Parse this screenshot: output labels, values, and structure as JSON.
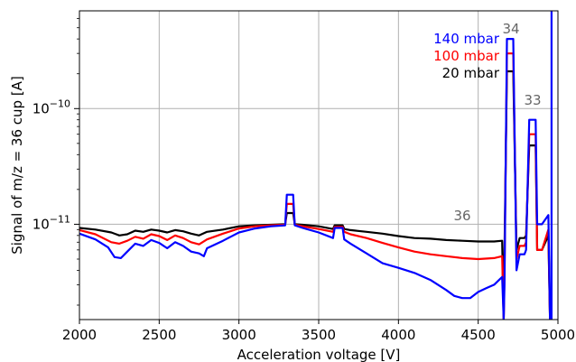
{
  "chart_data": {
    "type": "line",
    "xlabel": "Acceleration voltage [V]",
    "ylabel": "Signal of m/z = 36 cup [A]",
    "xlim": [
      2000,
      5000
    ],
    "ylim": [
      1.5e-12,
      7e-10
    ],
    "yscale": "log",
    "grid": true,
    "x_ticks": [
      2000,
      2500,
      3000,
      3500,
      4000,
      4500,
      5000
    ],
    "x_tick_labels": [
      "2000",
      "2500",
      "3000",
      "3500",
      "4000",
      "4500",
      "5000"
    ],
    "y_ticks": [
      1e-11,
      1e-10
    ],
    "y_tick_labels": [
      "10−11",
      "10−10"
    ],
    "legend_position": "top-right",
    "series": [
      {
        "name": "20 mbar",
        "color": "#000000",
        "points": [
          [
            2000,
            9.3e-12
          ],
          [
            2100,
            9e-12
          ],
          [
            2200,
            8.5e-12
          ],
          [
            2250,
            8e-12
          ],
          [
            2300,
            8.2e-12
          ],
          [
            2350,
            8.8e-12
          ],
          [
            2400,
            8.6e-12
          ],
          [
            2450,
            9e-12
          ],
          [
            2500,
            8.8e-12
          ],
          [
            2550,
            8.5e-12
          ],
          [
            2600,
            8.9e-12
          ],
          [
            2650,
            8.7e-12
          ],
          [
            2700,
            8.3e-12
          ],
          [
            2750,
            8e-12
          ],
          [
            2800,
            8.6e-12
          ],
          [
            2900,
            9e-12
          ],
          [
            3000,
            9.6e-12
          ],
          [
            3100,
            9.8e-12
          ],
          [
            3200,
            9.9e-12
          ],
          [
            3290,
            1e-11
          ],
          [
            3300,
            1.25e-11
          ],
          [
            3340,
            1.25e-11
          ],
          [
            3350,
            1e-11
          ],
          [
            3400,
            9.9e-12
          ],
          [
            3500,
            9.6e-12
          ],
          [
            3590,
            9.1e-12
          ],
          [
            3600,
            9.8e-12
          ],
          [
            3650,
            9.8e-12
          ],
          [
            3660,
            9.1e-12
          ],
          [
            3700,
            8.9e-12
          ],
          [
            3800,
            8.6e-12
          ],
          [
            3900,
            8.3e-12
          ],
          [
            4000,
            7.9e-12
          ],
          [
            4100,
            7.6e-12
          ],
          [
            4200,
            7.5e-12
          ],
          [
            4300,
            7.3e-12
          ],
          [
            4400,
            7.2e-12
          ],
          [
            4500,
            7.1e-12
          ],
          [
            4600,
            7.1e-12
          ],
          [
            4650,
            7.2e-12
          ],
          [
            4660,
            1.5e-12
          ],
          [
            4665,
            6e-12
          ],
          [
            4680,
            2.1e-10
          ],
          [
            4720,
            2.1e-10
          ],
          [
            4740,
            6e-12
          ],
          [
            4760,
            7.6e-12
          ],
          [
            4790,
            7.6e-12
          ],
          [
            4800,
            8e-12
          ],
          [
            4820,
            4.8e-11
          ],
          [
            4860,
            4.8e-11
          ],
          [
            4870,
            6e-12
          ],
          [
            4900,
            6e-12
          ],
          [
            4940,
            8e-12
          ],
          [
            4950,
            1.5e-12
          ]
        ]
      },
      {
        "name": "100 mbar",
        "color": "#ff0000",
        "points": [
          [
            2000,
            8.9e-12
          ],
          [
            2100,
            8.2e-12
          ],
          [
            2200,
            7e-12
          ],
          [
            2250,
            6.8e-12
          ],
          [
            2300,
            7.2e-12
          ],
          [
            2350,
            7.8e-12
          ],
          [
            2400,
            7.5e-12
          ],
          [
            2450,
            8.2e-12
          ],
          [
            2500,
            7.9e-12
          ],
          [
            2550,
            7.3e-12
          ],
          [
            2600,
            8e-12
          ],
          [
            2650,
            7.6e-12
          ],
          [
            2700,
            7e-12
          ],
          [
            2750,
            6.7e-12
          ],
          [
            2800,
            7.4e-12
          ],
          [
            2900,
            8.3e-12
          ],
          [
            3000,
            9.2e-12
          ],
          [
            3100,
            9.6e-12
          ],
          [
            3200,
            9.8e-12
          ],
          [
            3290,
            9.9e-12
          ],
          [
            3300,
            1.5e-11
          ],
          [
            3340,
            1.5e-11
          ],
          [
            3350,
            9.9e-12
          ],
          [
            3400,
            9.6e-12
          ],
          [
            3500,
            9.1e-12
          ],
          [
            3590,
            8.6e-12
          ],
          [
            3600,
            9.5e-12
          ],
          [
            3650,
            9.5e-12
          ],
          [
            3660,
            8.6e-12
          ],
          [
            3700,
            8.2e-12
          ],
          [
            3800,
            7.6e-12
          ],
          [
            3900,
            6.9e-12
          ],
          [
            4000,
            6.3e-12
          ],
          [
            4100,
            5.8e-12
          ],
          [
            4200,
            5.5e-12
          ],
          [
            4300,
            5.3e-12
          ],
          [
            4400,
            5.1e-12
          ],
          [
            4500,
            5e-12
          ],
          [
            4600,
            5.1e-12
          ],
          [
            4650,
            5.3e-12
          ],
          [
            4660,
            1.5e-12
          ],
          [
            4665,
            4e-12
          ],
          [
            4680,
            3e-10
          ],
          [
            4720,
            3e-10
          ],
          [
            4740,
            5e-12
          ],
          [
            4760,
            6.5e-12
          ],
          [
            4790,
            6.5e-12
          ],
          [
            4800,
            7e-12
          ],
          [
            4820,
            6e-11
          ],
          [
            4860,
            6e-11
          ],
          [
            4870,
            6e-12
          ],
          [
            4900,
            6e-12
          ],
          [
            4940,
            9e-12
          ],
          [
            4950,
            1.5e-12
          ]
        ]
      },
      {
        "name": "140 mbar",
        "color": "#0000ff",
        "points": [
          [
            2000,
            8.3e-12
          ],
          [
            2100,
            7.4e-12
          ],
          [
            2180,
            6.3e-12
          ],
          [
            2220,
            5.2e-12
          ],
          [
            2260,
            5.1e-12
          ],
          [
            2300,
            5.8e-12
          ],
          [
            2350,
            6.8e-12
          ],
          [
            2400,
            6.5e-12
          ],
          [
            2450,
            7.3e-12
          ],
          [
            2500,
            6.9e-12
          ],
          [
            2550,
            6.2e-12
          ],
          [
            2600,
            7e-12
          ],
          [
            2650,
            6.5e-12
          ],
          [
            2700,
            5.8e-12
          ],
          [
            2750,
            5.6e-12
          ],
          [
            2780,
            5.3e-12
          ],
          [
            2800,
            6.2e-12
          ],
          [
            2900,
            7.2e-12
          ],
          [
            3000,
            8.5e-12
          ],
          [
            3100,
            9.2e-12
          ],
          [
            3200,
            9.6e-12
          ],
          [
            3290,
            9.8e-12
          ],
          [
            3300,
            1.8e-11
          ],
          [
            3340,
            1.8e-11
          ],
          [
            3350,
            9.8e-12
          ],
          [
            3400,
            9.3e-12
          ],
          [
            3500,
            8.5e-12
          ],
          [
            3590,
            7.6e-12
          ],
          [
            3600,
            9.3e-12
          ],
          [
            3650,
            9.3e-12
          ],
          [
            3660,
            7.4e-12
          ],
          [
            3700,
            6.8e-12
          ],
          [
            3800,
            5.6e-12
          ],
          [
            3900,
            4.6e-12
          ],
          [
            4000,
            4.2e-12
          ],
          [
            4100,
            3.8e-12
          ],
          [
            4200,
            3.3e-12
          ],
          [
            4300,
            2.7e-12
          ],
          [
            4350,
            2.4e-12
          ],
          [
            4400,
            2.3e-12
          ],
          [
            4450,
            2.3e-12
          ],
          [
            4500,
            2.6e-12
          ],
          [
            4550,
            2.8e-12
          ],
          [
            4600,
            3e-12
          ],
          [
            4650,
            3.5e-12
          ],
          [
            4660,
            1.5e-12
          ],
          [
            4665,
            3e-12
          ],
          [
            4680,
            4e-10
          ],
          [
            4720,
            4e-10
          ],
          [
            4740,
            4e-12
          ],
          [
            4760,
            5.5e-12
          ],
          [
            4790,
            5.5e-12
          ],
          [
            4800,
            6e-12
          ],
          [
            4820,
            8e-11
          ],
          [
            4860,
            8e-11
          ],
          [
            4870,
            1e-11
          ],
          [
            4900,
            1e-11
          ],
          [
            4940,
            1.2e-11
          ],
          [
            4950,
            1.5e-12
          ],
          [
            4960,
            1.5e-12
          ],
          [
            4960,
            7e-10
          ]
        ]
      }
    ],
    "annotations": [
      "34",
      "33",
      "36"
    ]
  }
}
